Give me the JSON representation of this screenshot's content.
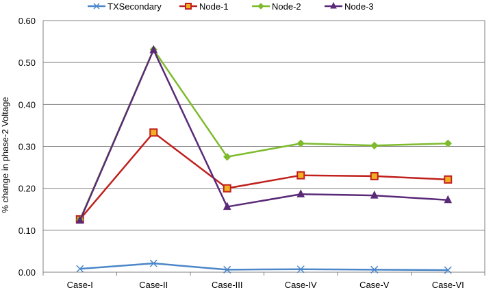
{
  "chart_data": {
    "type": "line",
    "ylabel": "% change in phase-2 Voltage",
    "xlabel": "",
    "categories": [
      "Case-I",
      "Case-II",
      "Case-III",
      "Case-IV",
      "Case-V",
      "Case-VI"
    ],
    "ylim": [
      0,
      0.6
    ],
    "yticks": [
      "0.00",
      "0.10",
      "0.20",
      "0.30",
      "0.40",
      "0.50",
      "0.60"
    ],
    "grid": "horizontal",
    "legend_position": "top",
    "series": [
      {
        "name": "TXSecondary",
        "color": "#4a86c8",
        "marker": "x",
        "values": [
          0.008,
          0.021,
          0.006,
          0.007,
          0.006,
          0.005
        ]
      },
      {
        "name": "Node-1",
        "color": "#c0201c",
        "marker": "square",
        "values": [
          0.126,
          0.333,
          0.2,
          0.231,
          0.229,
          0.221
        ]
      },
      {
        "name": "Node-2",
        "color": "#7dbb2c",
        "marker": "diamond",
        "values": [
          0.125,
          0.531,
          0.275,
          0.307,
          0.302,
          0.307
        ]
      },
      {
        "name": "Node-3",
        "color": "#5a2a78",
        "marker": "triangle",
        "values": [
          0.123,
          0.53,
          0.156,
          0.186,
          0.183,
          0.172
        ]
      }
    ]
  }
}
